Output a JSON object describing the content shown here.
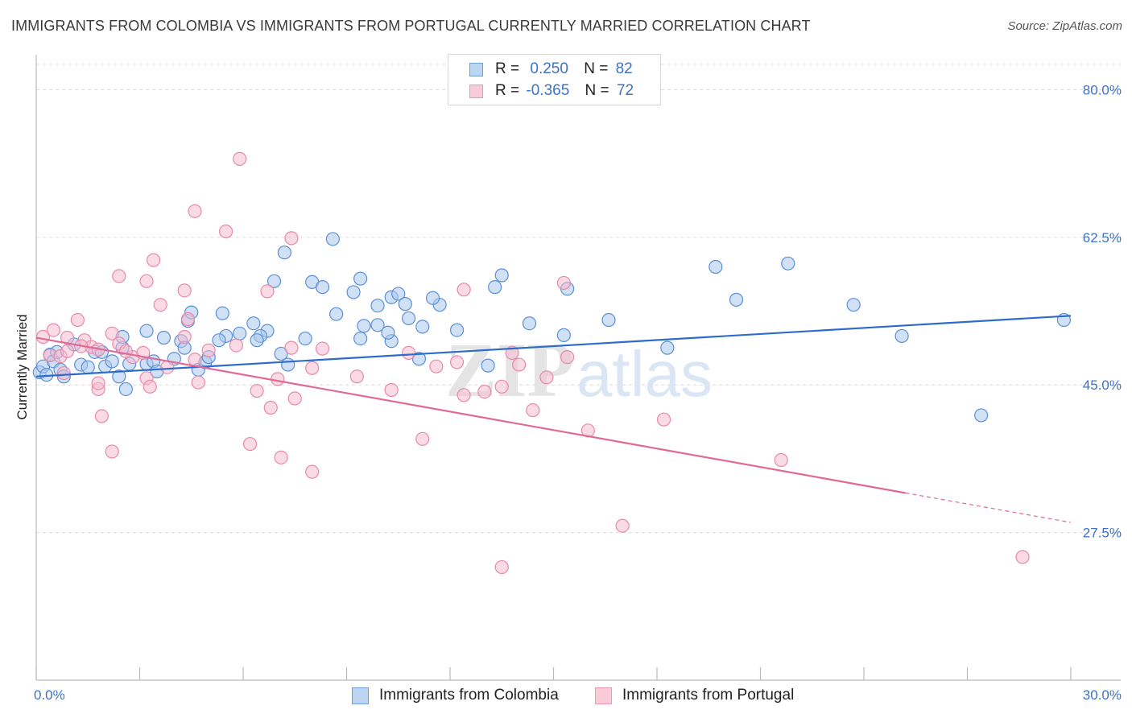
{
  "header": {
    "title": "IMMIGRANTS FROM COLOMBIA VS IMMIGRANTS FROM PORTUGAL CURRENTLY MARRIED CORRELATION CHART",
    "source": "Source: ZipAtlas.com"
  },
  "watermark": {
    "zip": "ZIP",
    "atlas": "atlas"
  },
  "legend": {
    "rows": [
      {
        "r_label": "R =",
        "r_value": "0.250",
        "n_label": "N =",
        "n_value": "82"
      },
      {
        "r_label": "R =",
        "r_value": "-0.365",
        "n_label": "N =",
        "n_value": "72"
      }
    ]
  },
  "bottom_legend": {
    "colombia": "Immigrants from Colombia",
    "portugal": "Immigrants from Portugal"
  },
  "colors": {
    "colombia_fill": "#a9c8ef",
    "colombia_stroke": "#5b8fd6",
    "colombia_line": "#2f6cc9",
    "portugal_fill": "#f6bccd",
    "portugal_stroke": "#e78aa8",
    "portugal_line": "#e06a95",
    "tick_text": "#3d72c4",
    "grid": "#dcdcdc"
  },
  "chart_data": {
    "type": "scatter",
    "title": "IMMIGRANTS FROM COLOMBIA VS IMMIGRANTS FROM PORTUGAL CURRENTLY MARRIED CORRELATION CHART",
    "xlabel": "",
    "ylabel": "Currently Married",
    "xlim": [
      0,
      30
    ],
    "ylim": [
      10,
      83
    ],
    "x_tick_labels": [
      "0.0%",
      "30.0%"
    ],
    "y_ticks": [
      27.5,
      45.0,
      62.5,
      80.0
    ],
    "y_tick_labels": [
      "27.5%",
      "45.0%",
      "62.5%",
      "80.0%"
    ],
    "grid": true,
    "legend_position": "top-center",
    "series": [
      {
        "name": "Immigrants from Colombia",
        "R": 0.25,
        "N": 82,
        "trend": {
          "x": [
            0,
            30
          ],
          "y": [
            46.0,
            53.2
          ]
        },
        "points": [
          [
            0.1,
            46.5
          ],
          [
            0.2,
            47.2
          ],
          [
            0.3,
            46.2
          ],
          [
            0.4,
            48.6
          ],
          [
            0.5,
            47.8
          ],
          [
            0.6,
            48.9
          ],
          [
            0.7,
            46.8
          ],
          [
            0.8,
            46.0
          ],
          [
            1.1,
            49.8
          ],
          [
            1.3,
            47.4
          ],
          [
            1.5,
            47.1
          ],
          [
            1.7,
            48.9
          ],
          [
            1.9,
            48.9
          ],
          [
            2.0,
            47.2
          ],
          [
            2.2,
            47.8
          ],
          [
            2.4,
            46.0
          ],
          [
            2.5,
            49.4
          ],
          [
            2.6,
            44.5
          ],
          [
            2.7,
            47.5
          ],
          [
            3.2,
            47.5
          ],
          [
            3.4,
            47.8
          ],
          [
            3.5,
            46.6
          ],
          [
            4.0,
            48.1
          ],
          [
            4.2,
            50.2
          ],
          [
            4.3,
            49.4
          ],
          [
            4.7,
            46.8
          ],
          [
            4.9,
            47.7
          ],
          [
            5.0,
            48.3
          ],
          [
            5.5,
            50.8
          ],
          [
            5.9,
            51.1
          ],
          [
            2.5,
            50.7
          ],
          [
            3.2,
            51.4
          ],
          [
            3.7,
            50.6
          ],
          [
            4.4,
            52.6
          ],
          [
            4.5,
            53.6
          ],
          [
            5.3,
            50.3
          ],
          [
            5.4,
            53.5
          ],
          [
            6.7,
            51.4
          ],
          [
            7.1,
            48.7
          ],
          [
            7.3,
            47.4
          ],
          [
            6.3,
            52.3
          ],
          [
            6.5,
            50.8
          ],
          [
            6.9,
            57.3
          ],
          [
            7.2,
            60.7
          ],
          [
            8.0,
            57.2
          ],
          [
            8.3,
            56.6
          ],
          [
            8.7,
            53.4
          ],
          [
            8.6,
            62.3
          ],
          [
            9.4,
            57.6
          ],
          [
            9.5,
            52.0
          ],
          [
            9.2,
            56.0
          ],
          [
            9.9,
            52.1
          ],
          [
            10.3,
            55.4
          ],
          [
            10.5,
            55.8
          ],
          [
            10.3,
            50.2
          ],
          [
            10.7,
            54.6
          ],
          [
            11.7,
            54.5
          ],
          [
            11.1,
            48.1
          ],
          [
            11.2,
            51.9
          ],
          [
            12.2,
            51.5
          ],
          [
            13.5,
            58.0
          ],
          [
            13.1,
            47.3
          ],
          [
            13.3,
            56.6
          ],
          [
            14.3,
            52.3
          ],
          [
            15.3,
            50.9
          ],
          [
            15.4,
            56.4
          ],
          [
            18.3,
            49.4
          ],
          [
            19.7,
            59.0
          ],
          [
            21.8,
            59.4
          ],
          [
            23.7,
            54.5
          ],
          [
            20.3,
            55.1
          ],
          [
            16.6,
            52.7
          ],
          [
            25.1,
            50.8
          ],
          [
            27.4,
            41.4
          ],
          [
            29.8,
            52.7
          ],
          [
            10.8,
            52.9
          ],
          [
            10.2,
            51.2
          ],
          [
            9.4,
            50.5
          ],
          [
            11.5,
            55.3
          ],
          [
            9.9,
            54.4
          ],
          [
            6.4,
            50.3
          ],
          [
            7.8,
            50.5
          ]
        ]
      },
      {
        "name": "Immigrants from Portugal",
        "R": -0.365,
        "N": 72,
        "trend": {
          "x": [
            0,
            25.2
          ],
          "y": [
            50.6,
            32.2
          ]
        },
        "trend_dashed": {
          "x": [
            25.2,
            30
          ],
          "y": [
            32.2,
            28.7
          ]
        },
        "points": [
          [
            0.2,
            50.7
          ],
          [
            0.4,
            48.5
          ],
          [
            0.5,
            51.5
          ],
          [
            0.7,
            48.4
          ],
          [
            0.9,
            49.0
          ],
          [
            1.2,
            52.7
          ],
          [
            1.4,
            50.3
          ],
          [
            1.6,
            49.5
          ],
          [
            2.2,
            51.1
          ],
          [
            2.4,
            49.9
          ],
          [
            2.8,
            48.3
          ],
          [
            3.1,
            48.8
          ],
          [
            0.8,
            46.4
          ],
          [
            1.8,
            49.2
          ],
          [
            1.8,
            44.5
          ],
          [
            1.9,
            41.3
          ],
          [
            2.2,
            37.1
          ],
          [
            3.2,
            45.8
          ],
          [
            3.3,
            44.8
          ],
          [
            3.6,
            54.5
          ],
          [
            3.8,
            47.1
          ],
          [
            4.3,
            50.7
          ],
          [
            4.6,
            48.0
          ],
          [
            4.7,
            45.3
          ],
          [
            5.0,
            49.1
          ],
          [
            5.8,
            49.7
          ],
          [
            6.4,
            44.3
          ],
          [
            6.2,
            38.0
          ],
          [
            6.8,
            42.3
          ],
          [
            7.0,
            45.7
          ],
          [
            7.5,
            43.4
          ],
          [
            7.4,
            49.4
          ],
          [
            7.1,
            36.4
          ],
          [
            8.0,
            47.0
          ],
          [
            8.3,
            49.3
          ],
          [
            8.0,
            34.7
          ],
          [
            9.3,
            46.0
          ],
          [
            10.3,
            44.4
          ],
          [
            10.8,
            48.8
          ],
          [
            11.2,
            38.6
          ],
          [
            11.6,
            47.2
          ],
          [
            12.2,
            47.7
          ],
          [
            12.4,
            43.8
          ],
          [
            13.0,
            44.2
          ],
          [
            14.0,
            47.4
          ],
          [
            12.4,
            56.3
          ],
          [
            13.5,
            44.8
          ],
          [
            13.8,
            48.8
          ],
          [
            14.8,
            45.9
          ],
          [
            15.4,
            48.3
          ],
          [
            14.4,
            42.0
          ],
          [
            15.3,
            57.1
          ],
          [
            16.0,
            39.6
          ],
          [
            17.0,
            28.3
          ],
          [
            5.9,
            71.8
          ],
          [
            4.6,
            65.6
          ],
          [
            5.5,
            63.2
          ],
          [
            7.4,
            62.4
          ],
          [
            6.7,
            56.1
          ],
          [
            4.3,
            56.2
          ],
          [
            3.2,
            57.3
          ],
          [
            2.4,
            57.9
          ],
          [
            3.4,
            59.8
          ],
          [
            18.2,
            40.9
          ],
          [
            21.6,
            36.1
          ],
          [
            28.6,
            24.6
          ],
          [
            1.8,
            45.2
          ],
          [
            0.9,
            50.6
          ],
          [
            1.3,
            49.6
          ],
          [
            2.6,
            49.0
          ],
          [
            4.4,
            52.8
          ],
          [
            13.5,
            23.4
          ]
        ]
      }
    ]
  }
}
